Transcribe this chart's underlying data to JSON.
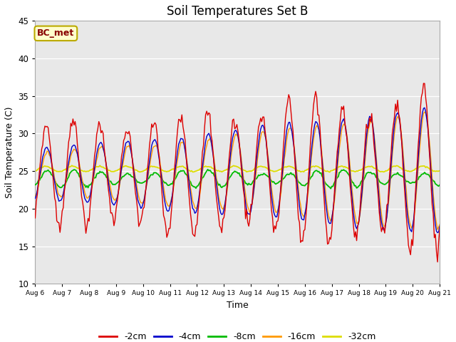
{
  "title": "Soil Temperatures Set B",
  "xlabel": "Time",
  "ylabel": "Soil Temperature (C)",
  "ylim": [
    10,
    45
  ],
  "xlim": [
    0,
    15
  ],
  "xtick_labels": [
    "Aug 6",
    "Aug 7",
    "Aug 8",
    "Aug 9",
    "Aug 10",
    "Aug 11",
    "Aug 12",
    "Aug 13",
    "Aug 14",
    "Aug 15",
    "Aug 16",
    "Aug 17",
    "Aug 18",
    "Aug 19",
    "Aug 20",
    "Aug 21"
  ],
  "series": {
    "2cm": {
      "color": "#dd0000",
      "label": "-2cm"
    },
    "4cm": {
      "color": "#0000cc",
      "label": "-4cm"
    },
    "8cm": {
      "color": "#00bb00",
      "label": "-8cm"
    },
    "16cm": {
      "color": "#ff9900",
      "label": "-16cm"
    },
    "32cm": {
      "color": "#dddd00",
      "label": "-32cm"
    }
  },
  "annotation_text": "BC_met",
  "annotation_color": "#880000",
  "annotation_bg": "#ffffcc",
  "annotation_border": "#bbaa00",
  "plot_bg": "#e8e8e8",
  "fig_bg": "#ffffff",
  "title_fontsize": 12,
  "grid_color": "#ffffff",
  "legend_fontsize": 9,
  "axis_fontsize": 9
}
